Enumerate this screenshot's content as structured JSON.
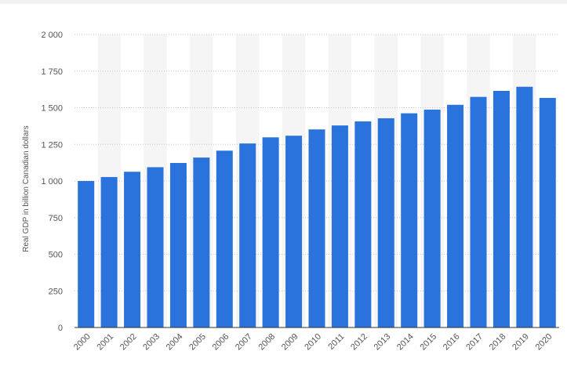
{
  "chart_data": {
    "type": "bar",
    "title": "",
    "xlabel": "",
    "ylabel": "Real GDP in billion Canadian dollars",
    "ylim": [
      0,
      2000
    ],
    "yticks": [
      0,
      250,
      500,
      750,
      1000,
      1250,
      1500,
      1750,
      2000
    ],
    "ytick_labels": [
      "0",
      "250",
      "500",
      "750",
      "1 000",
      "1 250",
      "1 500",
      "1 750",
      "2 000"
    ],
    "categories": [
      "2000",
      "2001",
      "2002",
      "2003",
      "2004",
      "2005",
      "2006",
      "2007",
      "2008",
      "2009",
      "2010",
      "2011",
      "2012",
      "2013",
      "2014",
      "2015",
      "2016",
      "2017",
      "2018",
      "2019",
      "2020"
    ],
    "values": [
      1000,
      1027,
      1063,
      1094,
      1123,
      1160,
      1207,
      1256,
      1298,
      1309,
      1352,
      1379,
      1407,
      1428,
      1462,
      1487,
      1520,
      1574,
      1615,
      1643,
      1567
    ],
    "grid": true,
    "colors": {
      "bar": "#2a73dc",
      "band": "#f5f5f5",
      "grid": "#c8c8c8",
      "axis": "#333333",
      "text": "#555555"
    }
  }
}
